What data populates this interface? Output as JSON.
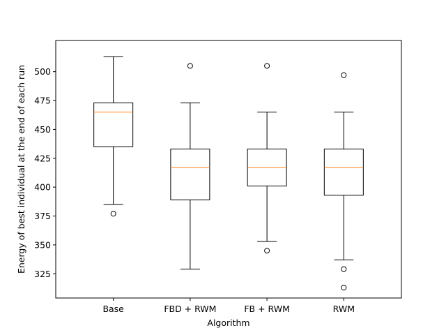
{
  "chart_data": {
    "type": "box",
    "xlabel": "Algorithm",
    "ylabel": "Energy of best individual at the end of each run",
    "categories": [
      "Base",
      "FBD + RWM",
      "FB + RWM",
      "RWM"
    ],
    "boxes": [
      {
        "category": "Base",
        "whisker_low": 385,
        "q1": 435,
        "median": 465,
        "q3": 473,
        "whisker_high": 513,
        "outliers": [
          377
        ]
      },
      {
        "category": "FBD + RWM",
        "whisker_low": 329,
        "q1": 389,
        "median": 417,
        "q3": 433,
        "whisker_high": 473,
        "outliers": [
          505
        ]
      },
      {
        "category": "FB + RWM",
        "whisker_low": 353,
        "q1": 401,
        "median": 417,
        "q3": 433,
        "whisker_high": 465,
        "outliers": [
          345,
          505
        ]
      },
      {
        "category": "RWM",
        "whisker_low": 337,
        "q1": 393,
        "median": 417,
        "q3": 433,
        "whisker_high": 465,
        "outliers": [
          313,
          329,
          497
        ]
      }
    ],
    "ylim": [
      304,
      527
    ],
    "yticks": [
      325,
      350,
      375,
      400,
      425,
      450,
      475,
      500
    ],
    "grid": false,
    "colors": {
      "box": "#000000",
      "median": "#ff7f0e"
    }
  }
}
